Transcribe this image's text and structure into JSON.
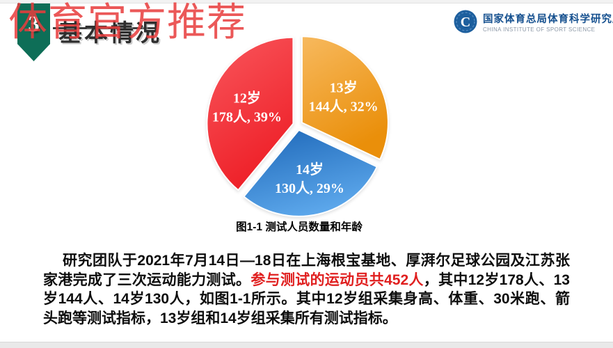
{
  "watermark": {
    "text": "体育官方推荐",
    "color": "#e83c3c"
  },
  "header": {
    "badge_number": "3",
    "badge_color": "#0e6e57",
    "title": "基本情况"
  },
  "logo": {
    "emblem_letter": "C",
    "emblem_color": "#1d5f9e",
    "name_cn": "国家体育总局体育科学研究所",
    "name_en": "CHINA INSTITUTE OF SPORT SCIENCE"
  },
  "chart_data": {
    "type": "pie",
    "title": "图1-1 测试人员数量和年龄",
    "total": 452,
    "start_angle_deg": 0,
    "direction": "clockwise",
    "label_color": "#ffffff",
    "legend_position": "none",
    "slices": [
      {
        "label": "13岁",
        "value": 144,
        "percent": 32,
        "color_from": "#f7b95e",
        "color_to": "#ea8f0a"
      },
      {
        "label": "14岁",
        "value": 130,
        "percent": 29,
        "color_from": "#1d67b8",
        "color_to": "#5ba6ea"
      },
      {
        "label": "12岁",
        "value": 178,
        "percent": 39,
        "color_from": "#f9575d",
        "color_to": "#ee2028"
      }
    ],
    "unit_suffix": "人"
  },
  "body": {
    "red_color": "#e01f1f",
    "segments": [
      {
        "red": false,
        "text": "研究团队于2021年7月14日—18日在上海根宝基地、厚湃尔足球公园及江苏张家港完成了三次运动能力测试。"
      },
      {
        "red": true,
        "text": "参与测试的运动员共452人"
      },
      {
        "red": false,
        "text": "，其中12岁178人、13岁144人、14岁130人，如图1-1所示。其中12岁组采集身高、体重、30米跑、箭头跑等测试指标，13岁组和14岁组采集所有测试指标。"
      }
    ]
  }
}
